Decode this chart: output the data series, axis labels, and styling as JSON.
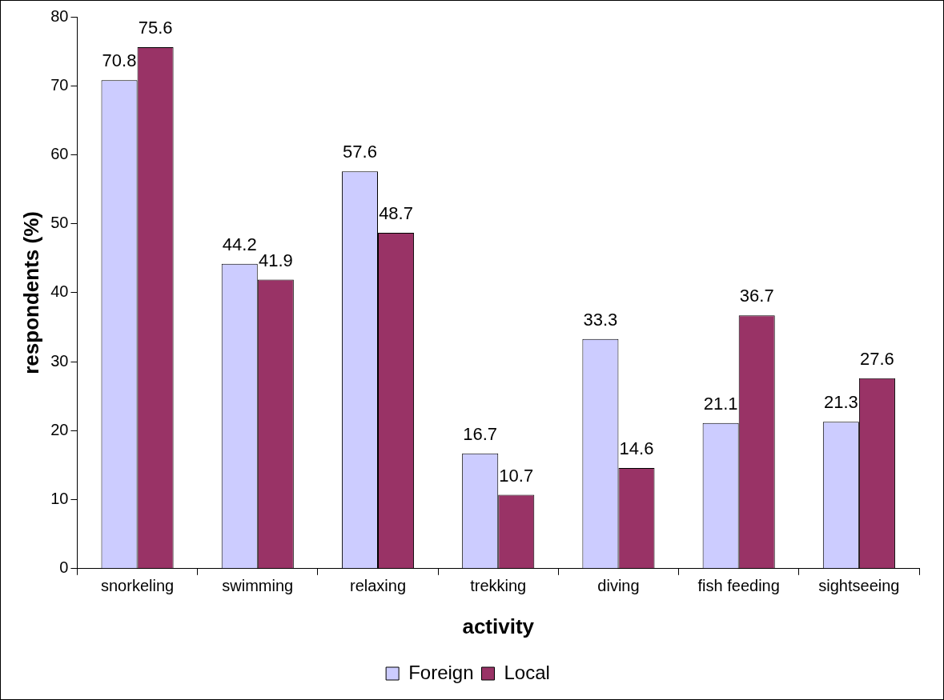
{
  "chart_data": {
    "type": "bar",
    "xlabel": "activity",
    "ylabel": "respondents (%)",
    "categories": [
      "snorkeling",
      "swimming",
      "relaxing",
      "trekking",
      "diving",
      "fish feeding",
      "sightseeing"
    ],
    "series": [
      {
        "name": "Foreign",
        "color": "#ccccff",
        "values": [
          70.8,
          44.2,
          57.6,
          16.7,
          33.3,
          21.1,
          21.3
        ]
      },
      {
        "name": "Local",
        "color": "#993366",
        "values": [
          75.6,
          41.9,
          48.7,
          10.7,
          14.6,
          36.7,
          27.6
        ]
      }
    ],
    "ylim": [
      0,
      80
    ],
    "yticks": [
      0,
      10,
      20,
      30,
      40,
      50,
      60,
      70,
      80
    ],
    "grid": false,
    "legend": "bottom",
    "data_labels": true
  }
}
